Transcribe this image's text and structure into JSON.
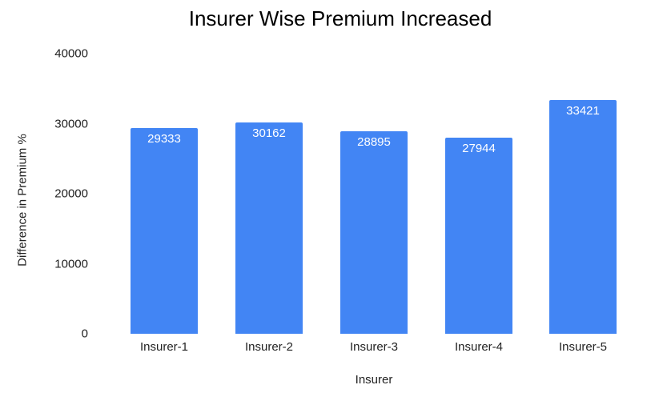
{
  "chart_data": {
    "type": "bar",
    "title": "Insurer Wise Premium Increased",
    "xlabel": "Insurer",
    "ylabel": "Difference in Premium %",
    "categories": [
      "Insurer-1",
      "Insurer-2",
      "Insurer-3",
      "Insurer-4",
      "Insurer-5"
    ],
    "values": [
      29333,
      30162,
      28895,
      27944,
      33421
    ],
    "data_labels": [
      "29333",
      "30162",
      "28895",
      "27944",
      "33421"
    ],
    "ylim": [
      0,
      40000
    ],
    "yticks": [
      "0",
      "10000",
      "20000",
      "30000",
      "40000"
    ],
    "grid": false,
    "legend": null,
    "bar_color": "#4285f4"
  }
}
